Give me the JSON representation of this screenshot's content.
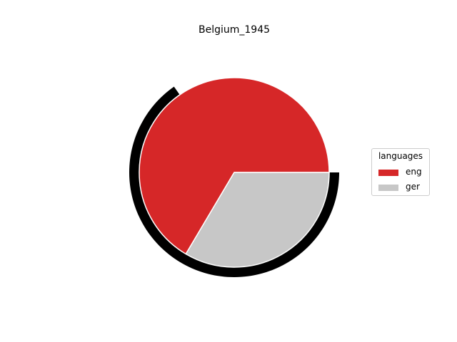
{
  "chart_data": {
    "type": "pie",
    "title": "Belgium_1945",
    "categories": [
      "eng",
      "ger"
    ],
    "values": [
      66.5,
      33.5
    ],
    "colors": [
      "#d62728",
      "#c7c7c7"
    ],
    "start_angle_deg": 0,
    "direction": "counterclockwise",
    "legend": {
      "title": "languages",
      "placement": "right",
      "entries": [
        "eng",
        "ger"
      ]
    },
    "outer_ring": {
      "color": "#000000",
      "visible": true
    }
  }
}
